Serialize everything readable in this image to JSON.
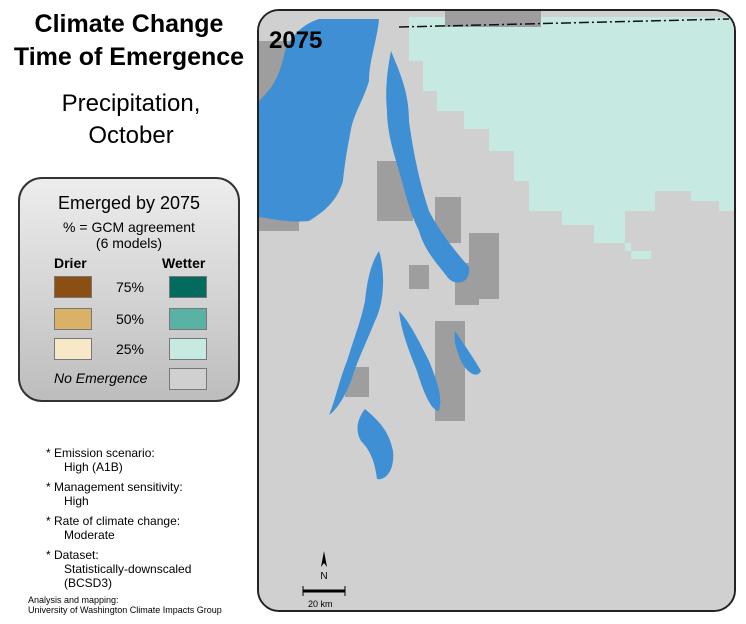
{
  "title": {
    "line1": "Climate Change",
    "line2": "Time of Emergence"
  },
  "subtitle": {
    "line1": "Precipitation,",
    "line2": "October"
  },
  "legend": {
    "title": "Emerged by 2075",
    "subtitle_line1": "% = GCM agreement",
    "subtitle_line2": "(6 models)",
    "drier_label": "Drier",
    "wetter_label": "Wetter",
    "rows": [
      {
        "pct": "75%",
        "drier_color": "#8b4f14",
        "wetter_color": "#036b5e"
      },
      {
        "pct": "50%",
        "drier_color": "#d9b268",
        "wetter_color": "#5ab2a4"
      },
      {
        "pct": "25%",
        "drier_color": "#f7e9c8",
        "wetter_color": "#c6e9e1"
      }
    ],
    "no_emergence_label": "No Emergence",
    "no_emergence_color": "#d0d0d0"
  },
  "notes": [
    {
      "label": "* Emission scenario:",
      "value": "High (A1B)"
    },
    {
      "label": "* Management sensitivity:",
      "value": "High"
    },
    {
      "label": "* Rate of climate change:",
      "value": "Moderate"
    },
    {
      "label": "* Dataset:",
      "value_line1": "Statistically-downscaled",
      "value_line2": "(BCSD3)"
    }
  ],
  "credit": {
    "line1": "Analysis and mapping:",
    "line2": "University of Washington Climate Impacts Group"
  },
  "map": {
    "year": "2075",
    "north_label": "N",
    "scale_label": "20 km",
    "colors": {
      "water": "#3e8fd4",
      "dark_gray": "#9e9e9e",
      "no_emergence": "#d0d0d0",
      "wetter_25": "#c6e9e1"
    }
  }
}
